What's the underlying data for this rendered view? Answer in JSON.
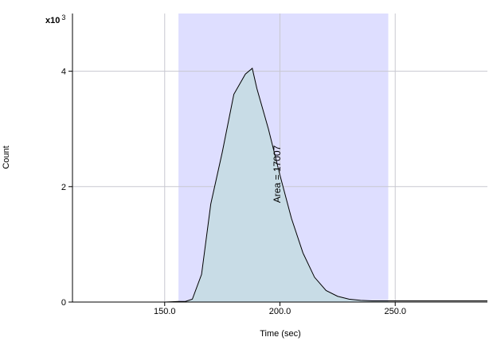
{
  "chart_data": {
    "type": "area",
    "xlabel": "Time (sec)",
    "ylabel": "Count",
    "y_multiplier_label": "x10 3",
    "xlim": [
      110,
      290
    ],
    "ylim": [
      0,
      5
    ],
    "x_ticks": [
      150,
      200,
      250
    ],
    "x_tick_labels": [
      "150.0",
      "200.0",
      "250.0"
    ],
    "y_ticks": [
      0,
      2,
      4
    ],
    "y_tick_labels": [
      "0",
      "2",
      "4"
    ],
    "grid": true,
    "highlight_region": [
      156,
      247
    ],
    "colors": {
      "highlight": "#dedeff",
      "area_fill": "#c8dce6",
      "line": "#000000",
      "grid": "#c8c8d0"
    },
    "annotation": "Area = 17007",
    "series": [
      {
        "x": [
          110,
          150,
          156,
          159,
          162,
          166,
          170,
          175,
          180,
          185,
          188,
          190,
          195,
          200,
          205,
          210,
          215,
          220,
          225,
          230,
          235,
          240,
          247,
          260,
          275,
          290
        ],
        "y": [
          0,
          0,
          0.01,
          0.01,
          0.05,
          0.48,
          1.7,
          2.6,
          3.6,
          3.95,
          4.05,
          3.7,
          3.0,
          2.2,
          1.45,
          0.85,
          0.43,
          0.2,
          0.1,
          0.05,
          0.03,
          0.02,
          0.02,
          0.02,
          0.02,
          0.02
        ]
      }
    ]
  }
}
